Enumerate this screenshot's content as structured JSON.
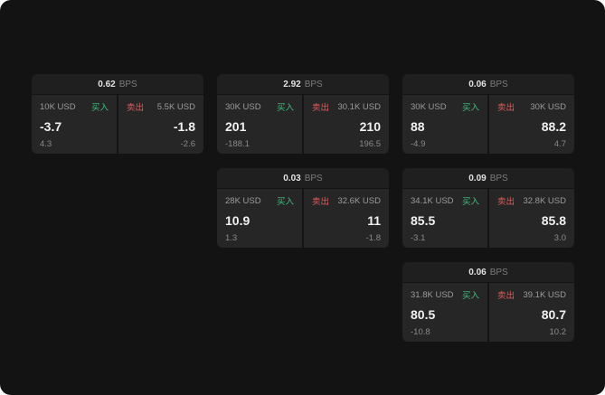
{
  "theme": {
    "background": "#131313",
    "panel_bg": "#1a1a1a",
    "tile_bg": "#262626",
    "buy_color": "#3fbf7f",
    "sell_color": "#e05c5c",
    "text_primary": "#f0f0f0",
    "text_secondary": "#8a8a8a"
  },
  "labels": {
    "bps_unit": "BPS",
    "buy": "买入",
    "sell": "卖出"
  },
  "panels": [
    {
      "bps": "0.62",
      "buy": {
        "size": "10K USD",
        "price": "-3.7",
        "delta": "4.3"
      },
      "sell": {
        "size": "5.5K USD",
        "price": "-1.8",
        "delta": "-2.6"
      }
    },
    {
      "bps": "2.92",
      "buy": {
        "size": "30K USD",
        "price": "201",
        "delta": "-188.1"
      },
      "sell": {
        "size": "30.1K USD",
        "price": "210",
        "delta": "196.5"
      }
    },
    {
      "bps": "0.06",
      "buy": {
        "size": "30K USD",
        "price": "88",
        "delta": "-4.9"
      },
      "sell": {
        "size": "30K USD",
        "price": "88.2",
        "delta": "4.7"
      }
    },
    {
      "bps": "0.03",
      "buy": {
        "size": "28K USD",
        "price": "10.9",
        "delta": "1.3"
      },
      "sell": {
        "size": "32.6K USD",
        "price": "11",
        "delta": "-1.8"
      }
    },
    {
      "bps": "0.09",
      "buy": {
        "size": "34.1K USD",
        "price": "85.5",
        "delta": "-3.1"
      },
      "sell": {
        "size": "32.8K USD",
        "price": "85.8",
        "delta": "3.0"
      }
    },
    {
      "bps": "0.06",
      "buy": {
        "size": "31.8K USD",
        "price": "80.5",
        "delta": "-10.8"
      },
      "sell": {
        "size": "39.1K USD",
        "price": "80.7",
        "delta": "10.2"
      }
    }
  ]
}
